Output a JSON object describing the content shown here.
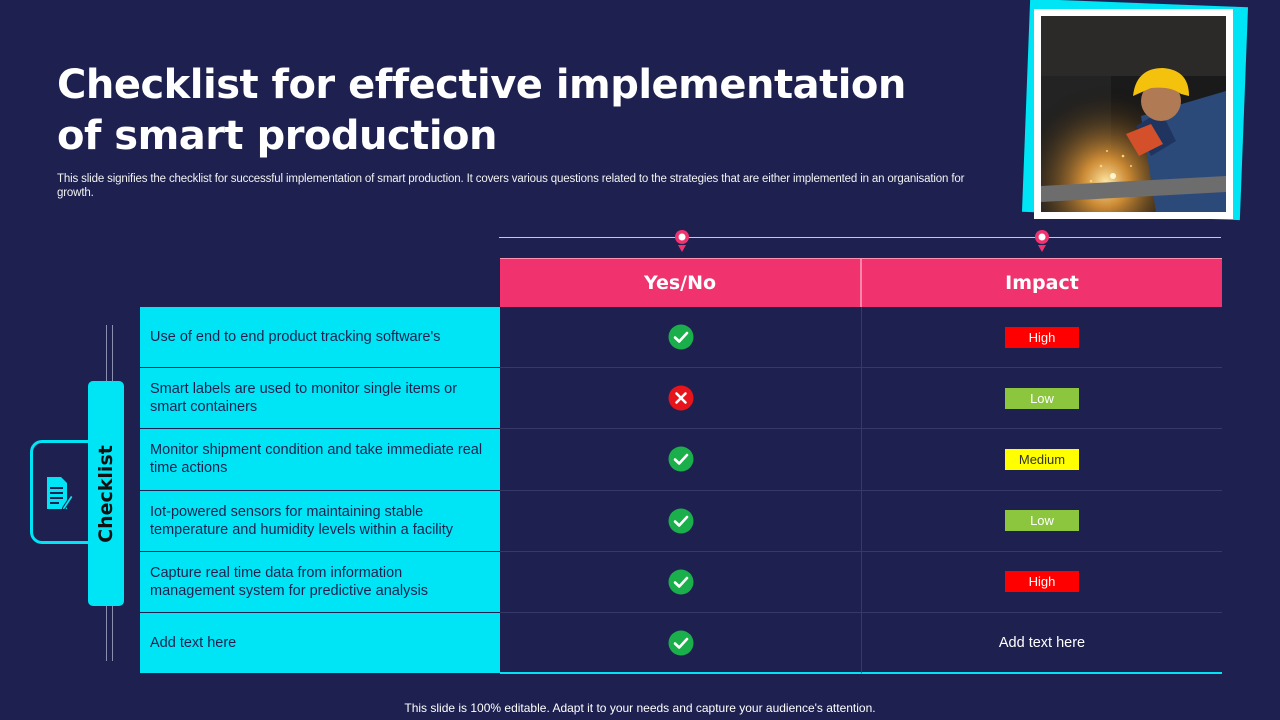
{
  "title": "Checklist for effective implementation of smart production",
  "subtitle": "This slide signifies the checklist for successful implementation of smart production. It covers various questions related to the strategies that are either implemented in an organisation for growth.",
  "side_label": "Checklist",
  "table": {
    "headers": [
      "Yes/No",
      "Impact"
    ],
    "rows": [
      {
        "question": "Use of end to end product tracking software's",
        "status": "yes",
        "impact": "High",
        "impact_color": "#ff0000",
        "impact_text_color": "#ffffff"
      },
      {
        "question": "Smart labels are used to monitor single items or smart containers",
        "status": "no",
        "impact": "Low",
        "impact_color": "#8cc63f",
        "impact_text_color": "#ffffff"
      },
      {
        "question": "Monitor shipment condition and take immediate real time actions",
        "status": "yes",
        "impact": "Medium",
        "impact_color": "#ffff00",
        "impact_text_color": "#333333"
      },
      {
        "question": "Iot-powered sensors for maintaining stable temperature and humidity levels within a facility",
        "status": "yes",
        "impact": "Low",
        "impact_color": "#8cc63f",
        "impact_text_color": "#ffffff"
      },
      {
        "question": "Capture real time data from information management system for predictive analysis",
        "status": "yes",
        "impact": "High",
        "impact_color": "#ff0000",
        "impact_text_color": "#ffffff"
      },
      {
        "question": "Add text here",
        "status": "yes",
        "impact": "Add text here",
        "impact_color": "",
        "impact_text_color": "#ffffff"
      }
    ]
  },
  "icons": {
    "yes": "check-circle-icon",
    "no": "x-circle-icon",
    "side": "document-edit-icon",
    "pins": "location-pin-icon"
  },
  "colors": {
    "background": "#1e2150",
    "accent_cyan": "#00e5f5",
    "header_pink": "#f0326e",
    "yes_green": "#1aaf4b",
    "no_red": "#e8141b"
  },
  "footer": "This slide is 100% editable. Adapt it to your needs and capture your audience's attention."
}
